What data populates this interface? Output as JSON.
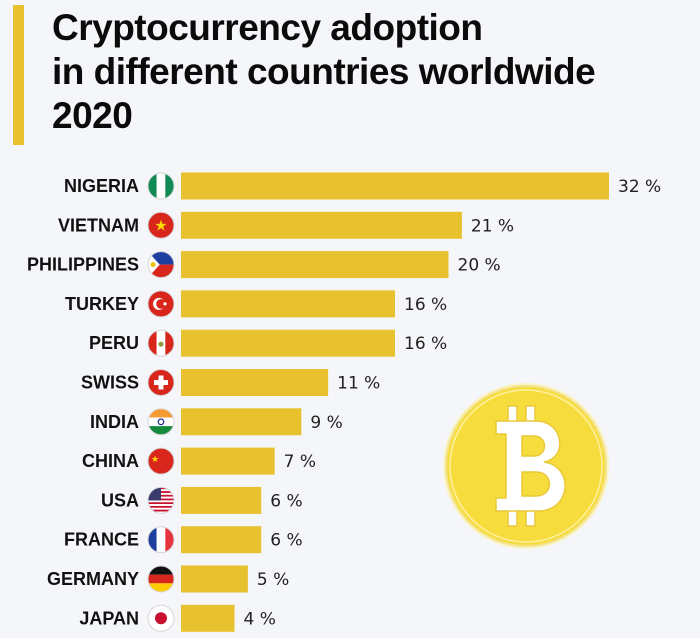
{
  "title": {
    "line1": "Cryptocurrency adoption",
    "line2": "in different countries worldwide",
    "line3": "2020"
  },
  "colors": {
    "bar": "#e8c12e",
    "accent": "#e8c12e",
    "background": "#f4f6f9",
    "coin": "#f7dc3e"
  },
  "chart_data": {
    "type": "bar",
    "orientation": "horizontal",
    "title": "Cryptocurrency adoption in different countries worldwide 2020",
    "xlabel": "",
    "ylabel": "",
    "unit": "%",
    "xlim": [
      0,
      32
    ],
    "grid": false,
    "categories": [
      "NIGERIA",
      "VIETNAM",
      "PHILIPPINES",
      "TURKEY",
      "PERU",
      "SWISS",
      "INDIA",
      "CHINA",
      "USA",
      "FRANCE",
      "GERMANY",
      "JAPAN"
    ],
    "values": [
      32,
      21,
      20,
      16,
      16,
      11,
      9,
      7,
      6,
      6,
      5,
      4
    ],
    "value_labels": [
      "32 %",
      "21 %",
      "20 %",
      "16 %",
      "16 %",
      "11 %",
      "9 %",
      "7 %",
      "6 %",
      "6 %",
      "5 %",
      "4 %"
    ],
    "flags": [
      "nigeria-flag-icon",
      "vietnam-flag-icon",
      "philippines-flag-icon",
      "turkey-flag-icon",
      "peru-flag-icon",
      "swiss-flag-icon",
      "india-flag-icon",
      "china-flag-icon",
      "usa-flag-icon",
      "france-flag-icon",
      "germany-flag-icon",
      "japan-flag-icon"
    ],
    "decoration": "bitcoin-coin-icon"
  }
}
